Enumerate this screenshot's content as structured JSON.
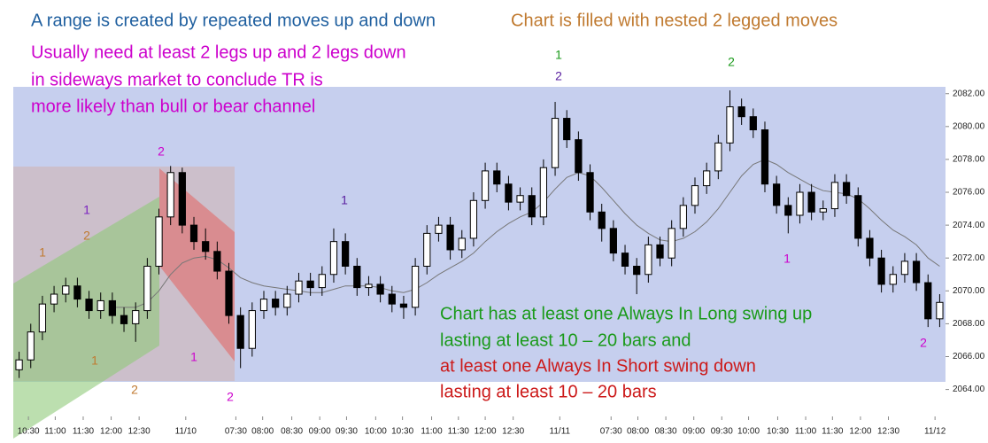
{
  "chart_data": {
    "type": "candlestick",
    "xlim": [
      0,
      80
    ],
    "xticks": [
      {
        "value": 1.3,
        "label": "10:30"
      },
      {
        "value": 3.6,
        "label": "11:00"
      },
      {
        "value": 6.0,
        "label": "11:30"
      },
      {
        "value": 8.4,
        "label": "12:00"
      },
      {
        "value": 10.8,
        "label": "12:30"
      },
      {
        "value": 14.8,
        "label": "11/10"
      },
      {
        "value": 19.1,
        "label": "07:30"
      },
      {
        "value": 21.4,
        "label": "08:00"
      },
      {
        "value": 23.9,
        "label": "08:30"
      },
      {
        "value": 26.3,
        "label": "09:00"
      },
      {
        "value": 28.6,
        "label": "09:30"
      },
      {
        "value": 31.1,
        "label": "10:00"
      },
      {
        "value": 33.4,
        "label": "10:30"
      },
      {
        "value": 35.9,
        "label": "11:00"
      },
      {
        "value": 38.2,
        "label": "11:30"
      },
      {
        "value": 40.5,
        "label": "12:00"
      },
      {
        "value": 42.9,
        "label": "12:30"
      },
      {
        "value": 46.9,
        "label": "11/11"
      },
      {
        "value": 51.3,
        "label": "07:30"
      },
      {
        "value": 53.6,
        "label": "08:00"
      },
      {
        "value": 56.0,
        "label": "08:30"
      },
      {
        "value": 58.4,
        "label": "09:00"
      },
      {
        "value": 60.8,
        "label": "09:30"
      },
      {
        "value": 63.1,
        "label": "10:00"
      },
      {
        "value": 65.6,
        "label": "10:30"
      },
      {
        "value": 68.0,
        "label": "11:00"
      },
      {
        "value": 70.3,
        "label": "11:30"
      },
      {
        "value": 72.7,
        "label": "12:00"
      },
      {
        "value": 75.1,
        "label": "12:30"
      },
      {
        "value": 79.1,
        "label": "11/12"
      }
    ],
    "ylim": [
      2062.9,
      2087.7
    ],
    "yticks": [
      {
        "value": 2064,
        "label": "2064.00"
      },
      {
        "value": 2066,
        "label": "2066.00"
      },
      {
        "value": 2068,
        "label": "2068.00"
      },
      {
        "value": 2070,
        "label": "2070.00"
      },
      {
        "value": 2072,
        "label": "2072.00"
      },
      {
        "value": 2074,
        "label": "2074.00"
      },
      {
        "value": 2076,
        "label": "2076.00"
      },
      {
        "value": 2078,
        "label": "2078.00"
      },
      {
        "value": 2080,
        "label": "2080.00"
      },
      {
        "value": 2082,
        "label": "2082.00"
      }
    ],
    "open": [
      2065.2,
      2065.8,
      2067.5,
      2069.2,
      2069.8,
      2070.3,
      2069.5,
      2068.8,
      2069.4,
      2068.5,
      2068.0,
      2068.8,
      2071.5,
      2074.5,
      2077.2,
      2074.0,
      2073.0,
      2072.4,
      2071.2,
      2068.5,
      2066.5,
      2068.8,
      2069.5,
      2069.0,
      2069.8,
      2070.6,
      2070.2,
      2071.0,
      2073.0,
      2071.5,
      2070.2,
      2070.4,
      2069.8,
      2069.2,
      2069.0,
      2071.5,
      2073.5,
      2074.0,
      2072.5,
      2073.2,
      2075.5,
      2077.3,
      2076.5,
      2075.4,
      2075.8,
      2074.5,
      2077.5,
      2080.5,
      2079.2,
      2077.2,
      2074.8,
      2073.8,
      2072.3,
      2071.5,
      2071.0,
      2072.8,
      2072.0,
      2073.8,
      2075.2,
      2076.4,
      2077.3,
      2079.0,
      2081.2,
      2080.6,
      2079.8,
      2076.5,
      2075.2,
      2074.6,
      2076.0,
      2074.8,
      2075.0,
      2076.6,
      2075.8,
      2073.2,
      2072.0,
      2070.4,
      2071.0,
      2071.8,
      2070.5,
      2068.3
    ],
    "high": [
      2066.3,
      2068.0,
      2069.7,
      2070.3,
      2070.8,
      2070.8,
      2070.0,
      2069.9,
      2069.9,
      2069.0,
      2069.3,
      2072.0,
      2075.0,
      2077.6,
      2077.5,
      2074.5,
      2073.8,
      2073.0,
      2071.7,
      2069.0,
      2069.3,
      2070.0,
      2070.0,
      2070.3,
      2071.1,
      2071.1,
      2071.5,
      2073.8,
      2073.5,
      2072.0,
      2070.9,
      2070.9,
      2070.3,
      2069.7,
      2072.0,
      2074.0,
      2074.5,
      2074.5,
      2073.7,
      2076.0,
      2077.8,
      2077.8,
      2077.0,
      2076.3,
      2076.3,
      2078.0,
      2081.5,
      2081.0,
      2079.7,
      2077.7,
      2075.3,
      2074.3,
      2072.8,
      2072.0,
      2073.3,
      2073.3,
      2074.3,
      2075.7,
      2076.9,
      2077.8,
      2079.5,
      2082.2,
      2081.7,
      2081.1,
      2080.3,
      2077.0,
      2075.7,
      2076.5,
      2076.5,
      2075.5,
      2077.1,
      2077.1,
      2076.3,
      2073.7,
      2072.5,
      2071.5,
      2072.3,
      2072.3,
      2071.0,
      2069.8
    ],
    "low": [
      2064.7,
      2065.3,
      2067.0,
      2068.7,
      2069.3,
      2069.0,
      2068.3,
      2068.3,
      2068.0,
      2067.5,
      2066.9,
      2068.3,
      2071.0,
      2074.0,
      2073.5,
      2072.5,
      2071.9,
      2070.7,
      2068.0,
      2065.3,
      2066.0,
      2068.3,
      2068.5,
      2068.5,
      2069.3,
      2069.7,
      2069.7,
      2070.5,
      2071.0,
      2069.7,
      2069.7,
      2069.3,
      2068.7,
      2068.3,
      2068.5,
      2071.0,
      2073.0,
      2071.9,
      2072.0,
      2072.7,
      2075.0,
      2076.0,
      2074.9,
      2074.9,
      2074.0,
      2074.0,
      2077.0,
      2078.7,
      2076.7,
      2074.3,
      2073.0,
      2071.8,
      2071.0,
      2069.8,
      2070.5,
      2071.5,
      2071.5,
      2073.3,
      2074.7,
      2075.9,
      2076.8,
      2078.5,
      2080.1,
      2079.3,
      2076.0,
      2074.7,
      2073.5,
      2074.1,
      2074.3,
      2074.3,
      2074.5,
      2075.3,
      2072.7,
      2071.5,
      2069.9,
      2069.9,
      2070.5,
      2070.0,
      2067.8,
      2067.8
    ],
    "close": [
      2065.8,
      2067.5,
      2069.2,
      2069.8,
      2070.3,
      2069.5,
      2068.8,
      2069.4,
      2068.5,
      2068.0,
      2068.8,
      2071.5,
      2074.5,
      2077.2,
      2074.0,
      2073.0,
      2072.4,
      2071.2,
      2068.5,
      2066.5,
      2068.8,
      2069.5,
      2069.0,
      2069.8,
      2070.6,
      2070.2,
      2071.0,
      2073.0,
      2071.5,
      2070.2,
      2070.4,
      2069.8,
      2069.2,
      2069.0,
      2071.5,
      2073.5,
      2074.0,
      2072.5,
      2073.2,
      2075.5,
      2077.3,
      2076.5,
      2075.4,
      2075.8,
      2074.5,
      2077.5,
      2080.5,
      2079.2,
      2077.2,
      2074.8,
      2073.8,
      2072.3,
      2071.5,
      2071.0,
      2072.8,
      2072.0,
      2073.8,
      2075.2,
      2076.4,
      2077.3,
      2079.0,
      2081.2,
      2080.6,
      2079.8,
      2076.5,
      2075.2,
      2074.6,
      2076.0,
      2074.8,
      2075.0,
      2076.6,
      2075.8,
      2073.2,
      2072.0,
      2070.4,
      2071.0,
      2071.8,
      2070.5,
      2068.3,
      2069.3
    ],
    "ma": [
      null,
      null,
      null,
      null,
      null,
      null,
      null,
      null,
      2069.0,
      2069.0,
      2069.0,
      2069.3,
      2070.0,
      2071.0,
      2071.7,
      2072.0,
      2072.1,
      2071.9,
      2071.4,
      2070.8,
      2070.5,
      2070.3,
      2070.2,
      2070.1,
      2070.0,
      2069.9,
      2069.9,
      2070.1,
      2070.3,
      2070.3,
      2070.3,
      2070.2,
      2070.0,
      2069.9,
      2070.1,
      2070.5,
      2071.0,
      2071.4,
      2071.8,
      2072.3,
      2073.0,
      2073.6,
      2074.1,
      2074.5,
      2074.8,
      2075.4,
      2076.2,
      2076.9,
      2077.2,
      2077.0,
      2076.3,
      2075.5,
      2074.7,
      2074.0,
      2073.5,
      2073.1,
      2073.0,
      2073.2,
      2073.6,
      2074.2,
      2075.0,
      2076.0,
      2077.0,
      2077.7,
      2078.0,
      2077.7,
      2077.2,
      2076.8,
      2076.4,
      2076.1,
      2076.0,
      2075.9,
      2075.6,
      2075.0,
      2074.3,
      2073.7,
      2073.3,
      2072.8,
      2072.0,
      2071.5
    ],
    "ma_color": "#777777",
    "up_color": "#ffffff",
    "down_color": "#000000",
    "annotations": [
      "A range is created by repeated moves up and down",
      "Chart is filled with nested 2 legged moves",
      "Usually need at least 2 legs up and 2 legs down",
      "in sideways market to conclude TR is",
      "more likely than bull or bear channel",
      "Chart has at least one Always In Long swing up",
      "lasting at least 10 – 20 bars and",
      "at least one Always In Short swing down",
      "lasting at least 10 – 20 bars"
    ],
    "leg_labels": [
      "1",
      "2",
      "1",
      "2",
      "1",
      "2",
      "1",
      "2",
      "1",
      "1",
      "2",
      "2",
      "1",
      "2"
    ]
  }
}
